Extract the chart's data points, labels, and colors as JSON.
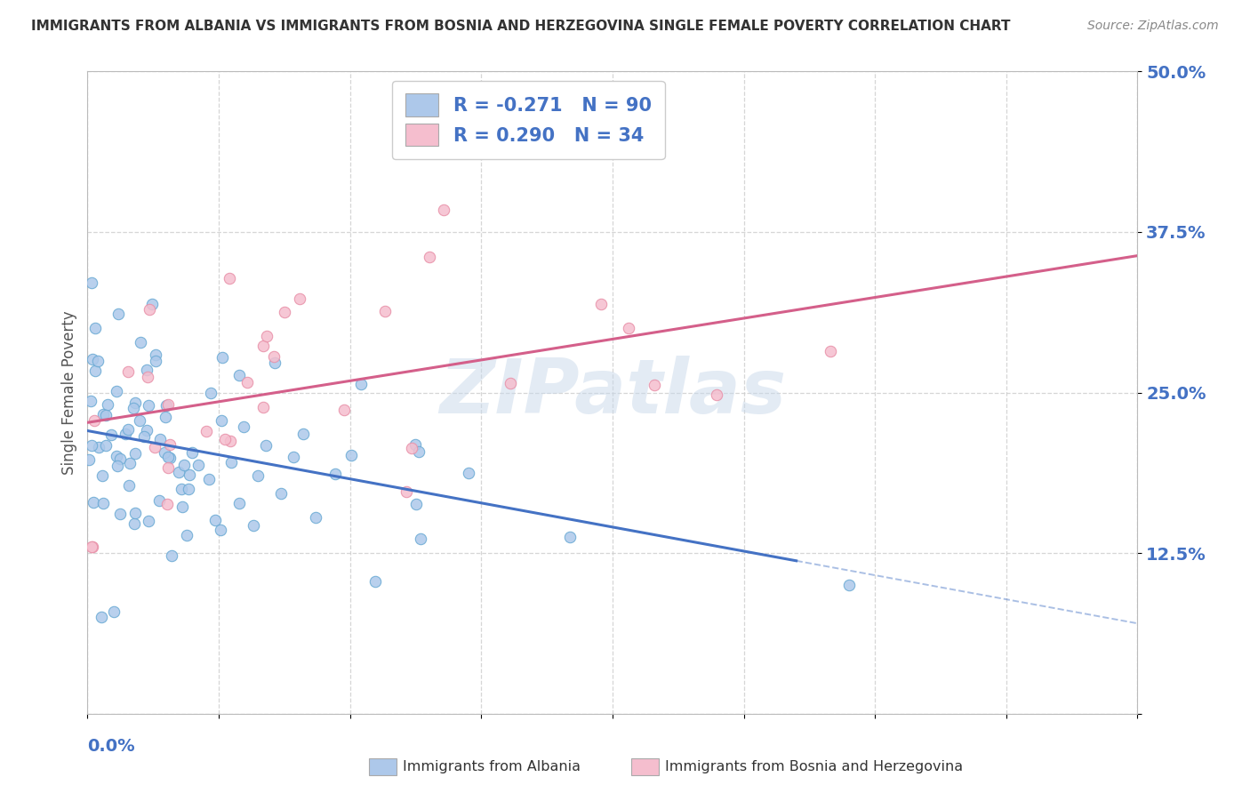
{
  "title": "IMMIGRANTS FROM ALBANIA VS IMMIGRANTS FROM BOSNIA AND HERZEGOVINA SINGLE FEMALE POVERTY CORRELATION CHART",
  "source": "Source: ZipAtlas.com",
  "ylabel": "Single Female Poverty",
  "watermark": "ZIPatlas",
  "albania": {
    "R": -0.271,
    "N": 90,
    "color_scatter": "#adc8ea",
    "color_edge": "#6aaad4",
    "color_line": "#4472c4",
    "label": "Immigrants from Albania"
  },
  "bosnia": {
    "R": 0.29,
    "N": 34,
    "color_scatter": "#f5bece",
    "color_edge": "#e890a8",
    "color_line": "#d45f8a",
    "label": "Immigrants from Bosnia and Herzegovina"
  },
  "xlim": [
    0.0,
    0.2
  ],
  "ylim": [
    0.0,
    0.5
  ],
  "yticks": [
    0.0,
    0.125,
    0.25,
    0.375,
    0.5
  ],
  "ytick_labels": [
    "",
    "12.5%",
    "25.0%",
    "37.5%",
    "50.0%"
  ],
  "legend_r_color": "#000000",
  "legend_n_color": "#4472c4",
  "title_color": "#333333",
  "axis_label_color": "#4472c4",
  "background_color": "#ffffff",
  "grid_color": "#cccccc",
  "watermark_color": "#c8d8ea"
}
